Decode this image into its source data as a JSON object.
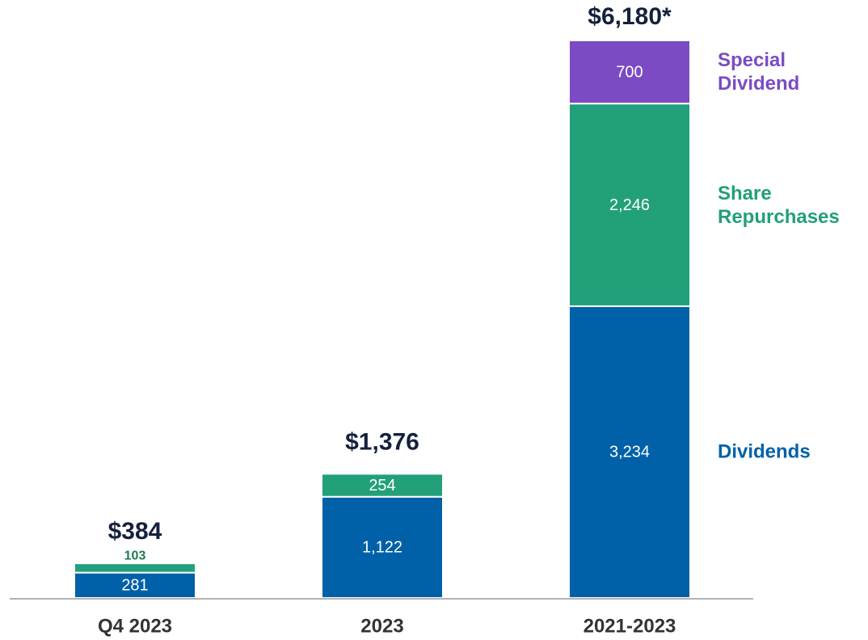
{
  "chart_data": {
    "type": "stacked_bar",
    "categories": [
      "Q4 2023",
      "2023",
      "2021-2023"
    ],
    "series": [
      {
        "name": "Dividends",
        "color": "#0061a8",
        "values": [
          281,
          1122,
          3234
        ],
        "value_labels": [
          "281",
          "1,122",
          "3,234"
        ]
      },
      {
        "name": "Share Repurchases",
        "color": "#21a07a",
        "values": [
          103,
          254,
          2246
        ],
        "value_labels": [
          "103",
          "254",
          "2,246"
        ]
      },
      {
        "name": "Special Dividend",
        "color": "#7b4bc4",
        "values": [
          null,
          null,
          700
        ],
        "value_labels": [
          null,
          null,
          "700"
        ]
      }
    ],
    "totals": {
      "values": [
        384,
        1376,
        6180
      ],
      "value_labels": [
        "$384",
        "$1,376",
        "$6,180*"
      ]
    }
  }
}
